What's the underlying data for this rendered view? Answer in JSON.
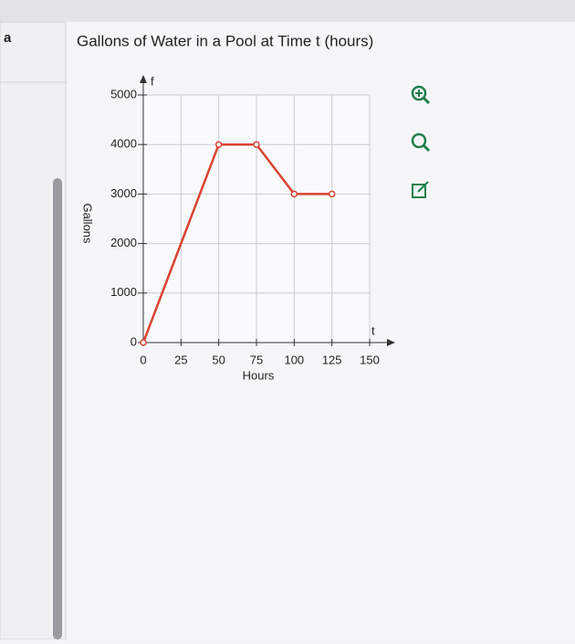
{
  "sidebar_label": "a",
  "chart_data": {
    "type": "line",
    "title": "Gallons of Water in a Pool at Time t (hours)",
    "x_label": "Hours",
    "y_label": "Gallons",
    "x_axis_letter": "t",
    "y_axis_letter": "f",
    "x": [
      0,
      50,
      75,
      100,
      125
    ],
    "series": [
      {
        "name": "Gallons",
        "color": "#d9432f",
        "values": [
          0,
          4000,
          4000,
          3000,
          3000
        ]
      }
    ],
    "xlim": [
      0,
      150
    ],
    "ylim": [
      0,
      5000
    ],
    "xticks": [
      0,
      25,
      50,
      75,
      100,
      125,
      150
    ],
    "yticks": [
      0,
      1000,
      2000,
      3000,
      4000,
      5000
    ],
    "grid": true
  }
}
